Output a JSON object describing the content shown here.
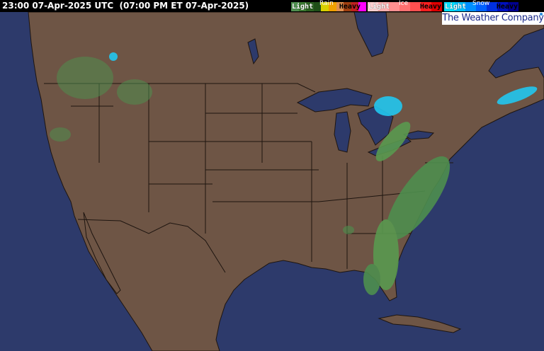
{
  "header": {
    "timestamp": "23:00 07-Apr-2025 UTC  (07:00 PM ET 07-Apr-2025)"
  },
  "legend": {
    "rain": {
      "title": "Rain",
      "light": "Light",
      "heavy": "Heavy",
      "colors": [
        "#4f8f4f",
        "#3a7a30",
        "#2a6020",
        "#1f4f18",
        "#d8d000",
        "#f0a000",
        "#e09050",
        "#a04010",
        "#c02020",
        "#ff00ff"
      ]
    },
    "ice": {
      "title": "Ice",
      "light": "Light",
      "heavy": "Heavy",
      "colors": [
        "#ffd0d0",
        "#ffb0b0",
        "#ff9090",
        "#ff7070",
        "#ff5050",
        "#ff2020",
        "#e00000"
      ]
    },
    "snow": {
      "title": "Snow",
      "light": "Light",
      "heavy": "Heavy",
      "colors": [
        "#00e0ff",
        "#00c0ff",
        "#0090ff",
        "#0060ff",
        "#0030e0",
        "#0010c0",
        "#000090"
      ]
    }
  },
  "logo": {
    "text": "The Weather Company"
  },
  "map": {
    "land_color": "#6e5545",
    "water_color": "#2d3a6b",
    "border_color": "#1e1510"
  }
}
